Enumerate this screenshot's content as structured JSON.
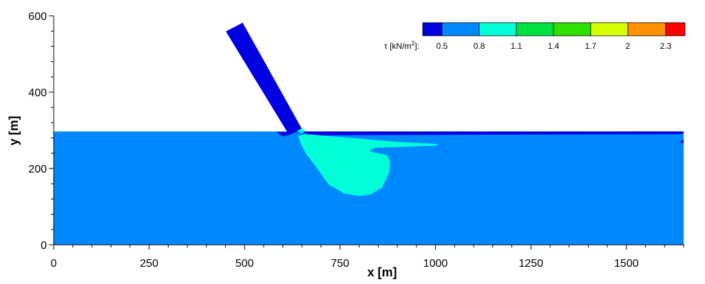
{
  "chart_data": {
    "type": "heatmap",
    "xlabel": "x [m]",
    "ylabel": "y [m]",
    "xlim": [
      0,
      1650
    ],
    "ylim": [
      0,
      600
    ],
    "x_ticks": [
      "0",
      "250",
      "500",
      "750",
      "1000",
      "1250",
      "1500"
    ],
    "x_tick_values": [
      0,
      250,
      500,
      750,
      1000,
      1250,
      1500
    ],
    "y_ticks": [
      "0",
      "200",
      "400",
      "600"
    ],
    "y_tick_values": [
      0,
      200,
      400,
      600
    ],
    "legend": {
      "label_prefix": "τ [kN/m",
      "label_sup": "2",
      "label_suffix": "]:",
      "levels": [
        "0.5",
        "0.8",
        "1.1",
        "1.4",
        "1.7",
        "2",
        "2.3"
      ],
      "colors": [
        "#0000e0",
        "#0088ff",
        "#00ffd8",
        "#00e040",
        "#30e000",
        "#d8ff00",
        "#ff9000",
        "#ff0000"
      ],
      "placement": "top-right"
    },
    "regions": [
      {
        "id": "domain-body",
        "level": "0.5-0.8",
        "color": "#0088ff",
        "polygon": [
          [
            0,
            0
          ],
          [
            1650,
            0
          ],
          [
            1650,
            297
          ],
          [
            0,
            297
          ]
        ]
      },
      {
        "id": "inflow-channel",
        "level": "<0.5",
        "color": "#0000e0",
        "polygon": [
          [
            451,
            559
          ],
          [
            495,
            582
          ],
          [
            655,
            295
          ],
          [
            612,
            295
          ]
        ]
      },
      {
        "id": "channel-base-pool",
        "level": "<0.5",
        "color": "#0000e0",
        "polygon": [
          [
            583,
            296
          ],
          [
            600,
            284
          ],
          [
            616,
            288
          ],
          [
            635,
            296
          ]
        ]
      },
      {
        "id": "surface-strip",
        "level": "<0.5",
        "color": "#0000e0",
        "polygon": [
          [
            655,
            297
          ],
          [
            1650,
            297
          ],
          [
            1650,
            292
          ],
          [
            1640,
            290
          ],
          [
            1000,
            288
          ],
          [
            700,
            287
          ],
          [
            672,
            289
          ],
          [
            655,
            293
          ]
        ]
      },
      {
        "id": "shear-bulb",
        "level": "0.8-1.1",
        "color": "#00ffd8",
        "polygon": [
          [
            640,
            285
          ],
          [
            660,
            290
          ],
          [
            900,
            270
          ],
          [
            1010,
            264
          ],
          [
            1000,
            260
          ],
          [
            840,
            254
          ],
          [
            826,
            245
          ],
          [
            873,
            235
          ],
          [
            881,
            218
          ],
          [
            879,
            190
          ],
          [
            860,
            150
          ],
          [
            830,
            132
          ],
          [
            800,
            128
          ],
          [
            760,
            135
          ],
          [
            720,
            158
          ],
          [
            690,
            200
          ],
          [
            660,
            240
          ],
          [
            647,
            265
          ]
        ]
      },
      {
        "id": "inlet-cyan-sliver",
        "level": "0.8-1.1",
        "color": "#00ffd8",
        "polygon": [
          [
            636,
            298
          ],
          [
            648,
            304
          ],
          [
            660,
            300
          ],
          [
            650,
            293
          ]
        ]
      },
      {
        "id": "right-edge-notch",
        "level": "<0.5",
        "color": "#0000e0",
        "polygon": [
          [
            1650,
            266
          ],
          [
            1638,
            270
          ],
          [
            1650,
            275
          ]
        ]
      }
    ]
  }
}
